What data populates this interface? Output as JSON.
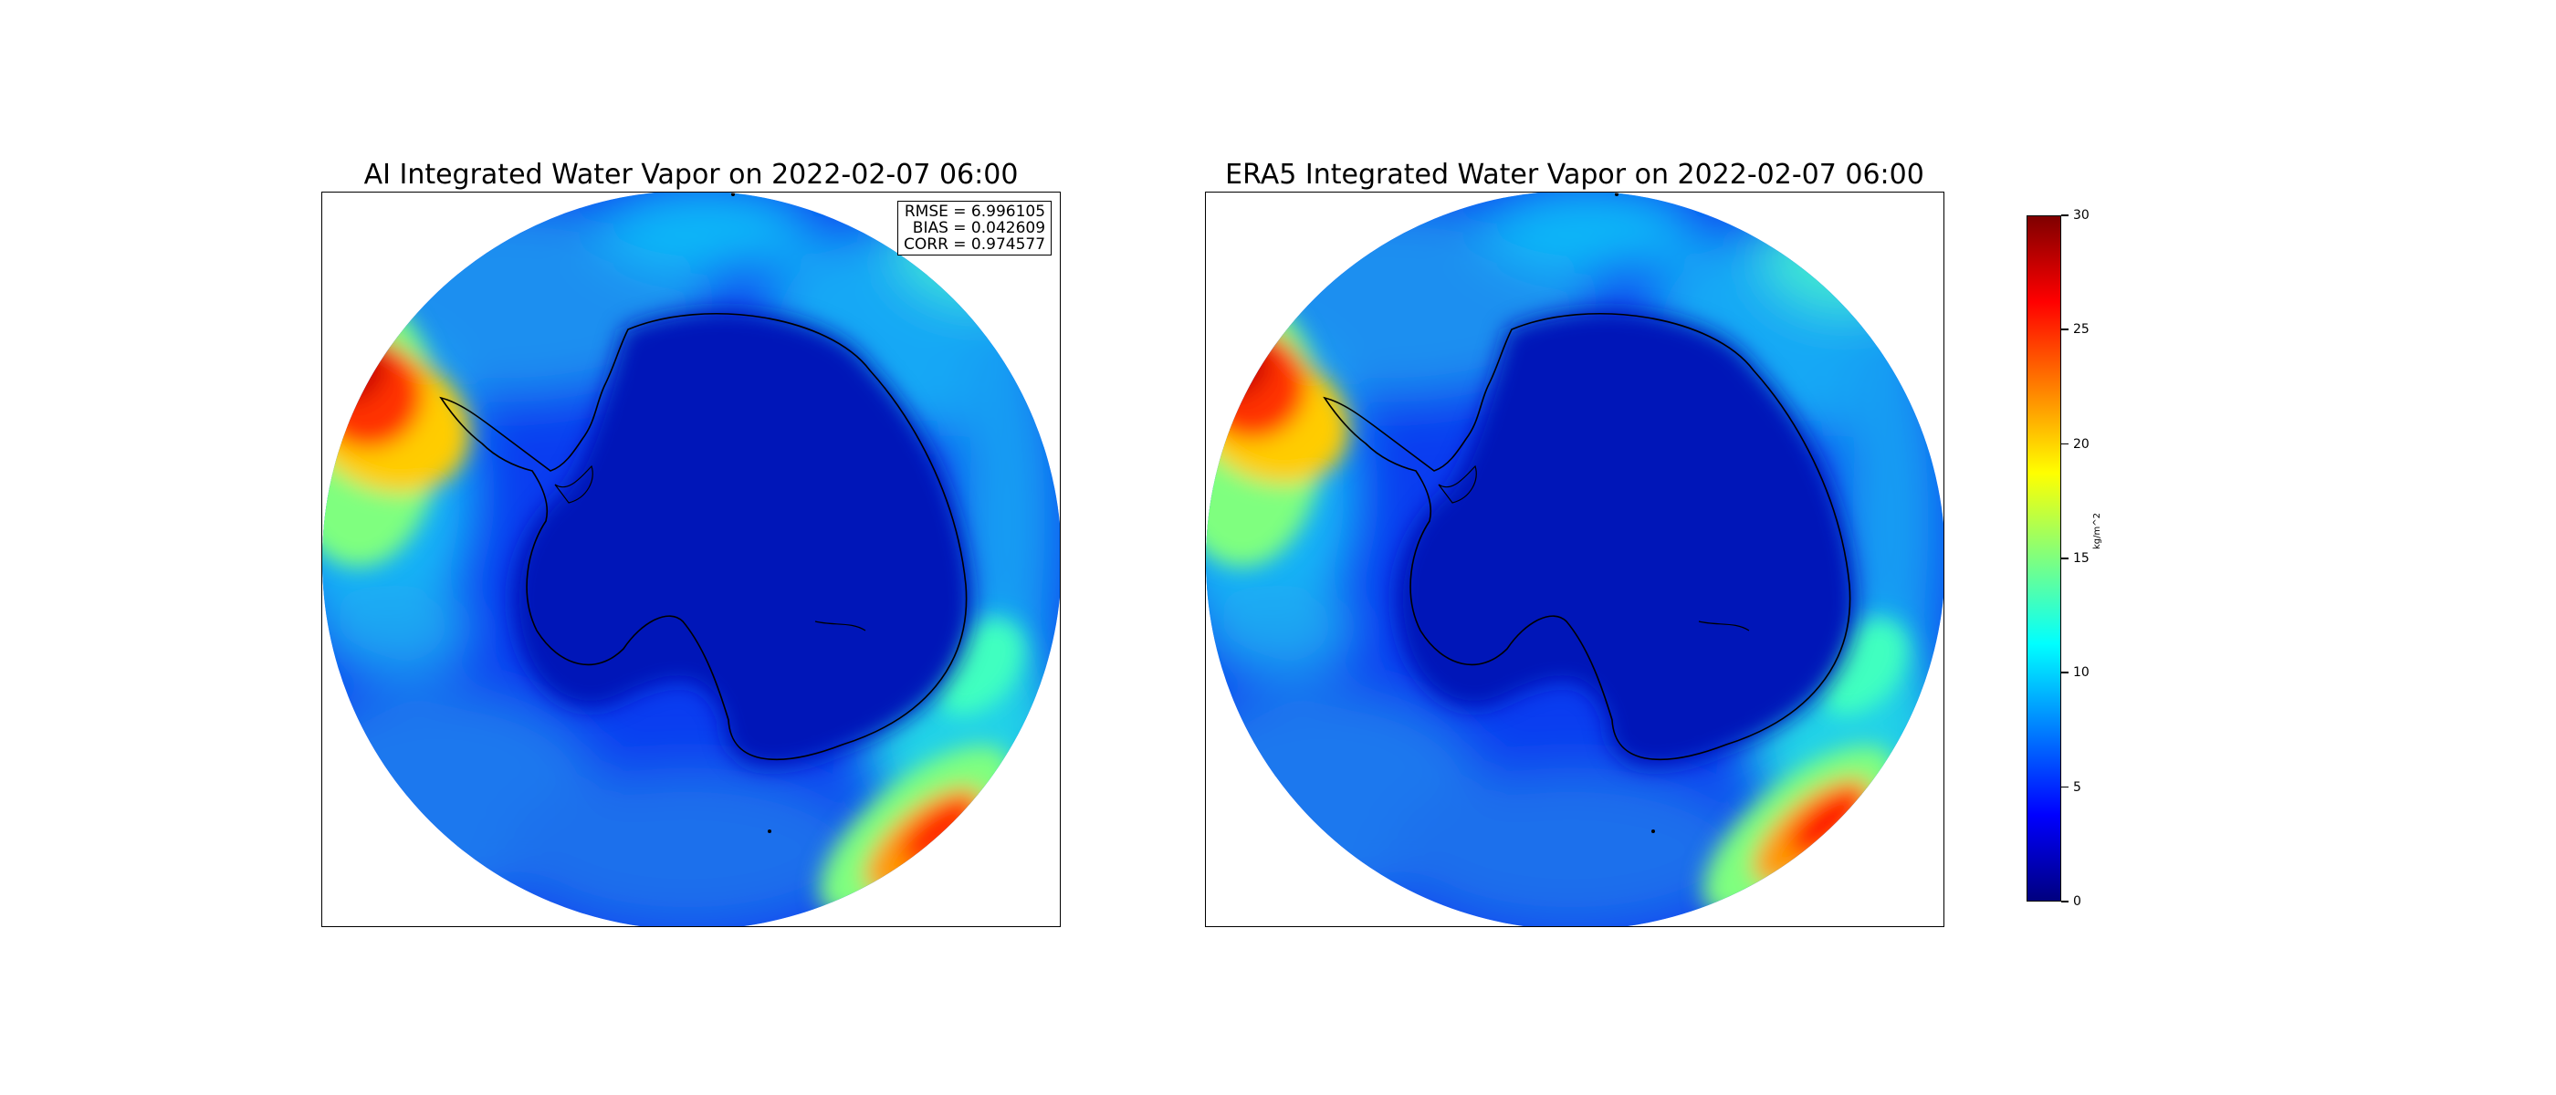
{
  "figure": {
    "left_title": "AI Integrated Water Vapor on 2022-02-07 06:00",
    "right_title": "ERA5 Integrated Water Vapor on 2022-02-07 06:00"
  },
  "stats": {
    "rmse": "RMSE = 6.996105",
    "bias": "BIAS = 0.042609",
    "corr": "CORR = 0.974577"
  },
  "colorbar": {
    "unit": "kg/m^2",
    "range": [
      0,
      30
    ],
    "ticks": [
      "0",
      "5",
      "10",
      "15",
      "20",
      "25",
      "30"
    ],
    "colormap": "jet",
    "colors": [
      "#00007f",
      "#0000ff",
      "#007fff",
      "#00ffff",
      "#7fff7f",
      "#ffff00",
      "#ff7f00",
      "#ff0000",
      "#7f0000"
    ]
  },
  "map": {
    "projection": "south-polar-stereographic",
    "coastline_color": "#000000"
  }
}
